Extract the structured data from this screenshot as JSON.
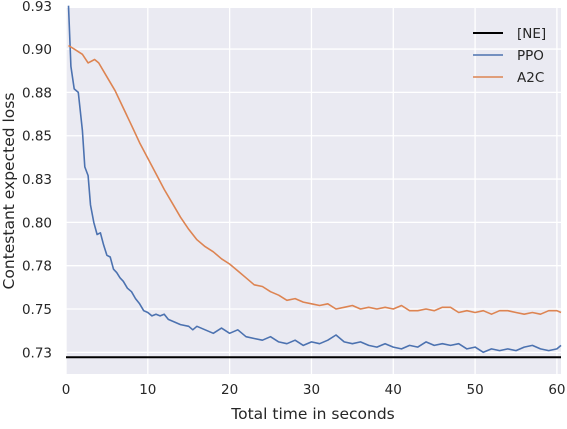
{
  "chart_data": {
    "type": "line",
    "xlabel": "Total time in seconds",
    "ylabel": "Contestant expected loss",
    "xlim": [
      0,
      60.5
    ],
    "ylim": [
      0.7188,
      0.93
    ],
    "x_ticks": [
      0,
      10,
      20,
      30,
      40,
      50,
      60
    ],
    "y_ticks": [
      0.7313,
      0.7563,
      0.7813,
      0.8063,
      0.8313,
      0.8563,
      0.8813,
      0.9063,
      0.9313
    ],
    "y_tick_labels": [
      "0.73",
      "0.75",
      "0.78",
      "0.80",
      "0.83",
      "0.85",
      "0.88",
      "0.90",
      "0.93"
    ],
    "grid": true,
    "legend_position": "top-right",
    "colors": {
      "background": "#eaeaf2",
      "grid": "#ffffff",
      "NE": "#000000",
      "PPO": "#4c72b0",
      "A2C": "#dd8452"
    },
    "series": [
      {
        "name": "[NE]",
        "style": "hline",
        "y": 0.7285
      },
      {
        "name": "PPO",
        "x": [
          0.3,
          0.6,
          1.0,
          1.5,
          2.0,
          2.3,
          2.7,
          3.0,
          3.4,
          3.8,
          4.2,
          4.6,
          5.0,
          5.4,
          5.8,
          6.2,
          6.6,
          7.0,
          7.5,
          8.0,
          8.5,
          9.0,
          9.5,
          10.0,
          10.5,
          11.0,
          11.5,
          12.0,
          12.5,
          13.0,
          14.0,
          15.0,
          15.5,
          16.0,
          17.0,
          18.0,
          19.0,
          20.0,
          21.0,
          22.0,
          23.0,
          24.0,
          25.0,
          26.0,
          27.0,
          28.0,
          29.0,
          30.0,
          31.0,
          32.0,
          33.0,
          34.0,
          35.0,
          36.0,
          37.0,
          38.0,
          39.0,
          40.0,
          41.0,
          42.0,
          43.0,
          44.0,
          45.0,
          46.0,
          47.0,
          48.0,
          49.0,
          50.0,
          51.0,
          52.0,
          53.0,
          54.0,
          55.0,
          56.0,
          57.0,
          58.0,
          59.0,
          60.0,
          60.5
        ],
        "values": [
          0.9313,
          0.8963,
          0.8833,
          0.8813,
          0.8593,
          0.8383,
          0.8333,
          0.8163,
          0.8063,
          0.7993,
          0.8003,
          0.7933,
          0.7873,
          0.7863,
          0.7793,
          0.7773,
          0.7743,
          0.7723,
          0.7683,
          0.7663,
          0.7623,
          0.7593,
          0.7553,
          0.7543,
          0.7523,
          0.7533,
          0.7523,
          0.7533,
          0.7503,
          0.7493,
          0.7473,
          0.7463,
          0.7443,
          0.7463,
          0.7443,
          0.7423,
          0.7453,
          0.7423,
          0.7443,
          0.7403,
          0.7393,
          0.7383,
          0.7403,
          0.7373,
          0.7363,
          0.7383,
          0.7353,
          0.7373,
          0.7363,
          0.7383,
          0.7413,
          0.7373,
          0.7363,
          0.7373,
          0.7353,
          0.7343,
          0.7363,
          0.7343,
          0.7333,
          0.7353,
          0.7343,
          0.7373,
          0.7353,
          0.7363,
          0.7353,
          0.7363,
          0.7333,
          0.7343,
          0.7313,
          0.7333,
          0.7323,
          0.7333,
          0.7323,
          0.7343,
          0.7353,
          0.7333,
          0.7323,
          0.7333,
          0.7353
        ]
      },
      {
        "name": "A2C",
        "x": [
          0.3,
          1.0,
          2.0,
          2.7,
          3.5,
          4.0,
          5.0,
          6.0,
          7.0,
          8.0,
          9.0,
          10.0,
          11.0,
          12.0,
          13.0,
          14.0,
          15.0,
          16.0,
          17.0,
          18.0,
          19.0,
          20.0,
          21.0,
          22.0,
          23.0,
          24.0,
          25.0,
          26.0,
          27.0,
          28.0,
          29.0,
          30.0,
          31.0,
          32.0,
          33.0,
          34.0,
          35.0,
          36.0,
          37.0,
          38.0,
          39.0,
          40.0,
          41.0,
          42.0,
          43.0,
          44.0,
          45.0,
          46.0,
          47.0,
          48.0,
          49.0,
          50.0,
          51.0,
          52.0,
          53.0,
          54.0,
          55.0,
          56.0,
          57.0,
          58.0,
          59.0,
          60.0,
          60.5
        ],
        "values": [
          0.9083,
          0.9063,
          0.9033,
          0.8983,
          0.9003,
          0.8983,
          0.8903,
          0.8823,
          0.8723,
          0.8623,
          0.8523,
          0.8433,
          0.8343,
          0.8253,
          0.8173,
          0.8093,
          0.8023,
          0.7963,
          0.7923,
          0.7893,
          0.7853,
          0.7823,
          0.7783,
          0.7743,
          0.7703,
          0.7693,
          0.7663,
          0.7643,
          0.7613,
          0.7623,
          0.7603,
          0.7593,
          0.7583,
          0.7593,
          0.7563,
          0.7573,
          0.7583,
          0.7563,
          0.7573,
          0.7563,
          0.7573,
          0.7563,
          0.7583,
          0.7553,
          0.7553,
          0.7563,
          0.7553,
          0.7573,
          0.7573,
          0.7543,
          0.7553,
          0.7543,
          0.7553,
          0.7533,
          0.7553,
          0.7553,
          0.7543,
          0.7533,
          0.7543,
          0.7533,
          0.7553,
          0.7553,
          0.7543
        ]
      }
    ]
  }
}
